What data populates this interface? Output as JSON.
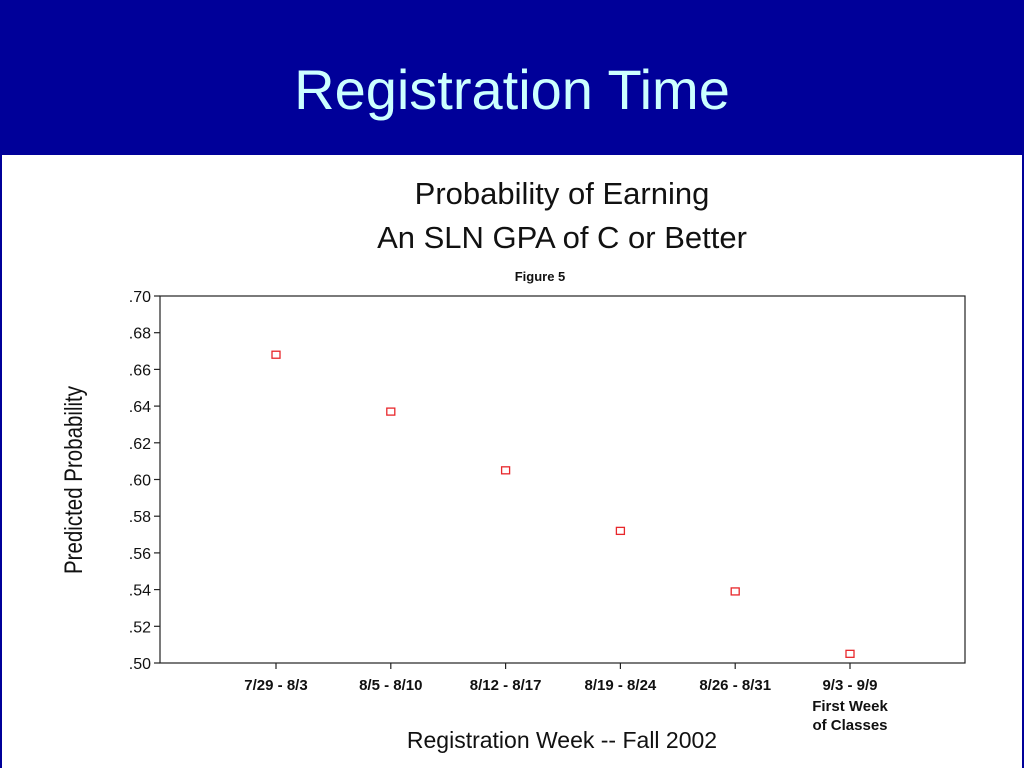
{
  "slide": {
    "title": "Registration Time"
  },
  "colors": {
    "title_band": "#000099",
    "title_text": "#ccffff",
    "marker": "#e8272b"
  },
  "chart_data": {
    "type": "scatter",
    "title_lines": [
      "Probability of Earning",
      "An SLN GPA of C or Better"
    ],
    "figure_label": "Figure 5",
    "xlabel": "Registration Week -- Fall 2002",
    "ylabel": "Predicted Probability",
    "categories": [
      "7/29 - 8/3",
      "8/5 - 8/10",
      "8/12 - 8/17",
      "8/19 - 8/24",
      "8/26 - 8/31",
      "9/3 - 9/9"
    ],
    "category_sublabels": [
      "",
      "",
      "",
      "",
      "",
      "First Week\nof Classes"
    ],
    "y_ticks": [
      ".50",
      ".52",
      ".54",
      ".56",
      ".58",
      ".60",
      ".62",
      ".64",
      ".66",
      ".68",
      ".70"
    ],
    "ylim": [
      0.5,
      0.7
    ],
    "values": [
      0.668,
      0.637,
      0.605,
      0.572,
      0.539,
      0.505
    ],
    "marker": "hollow-square",
    "grid": false
  }
}
